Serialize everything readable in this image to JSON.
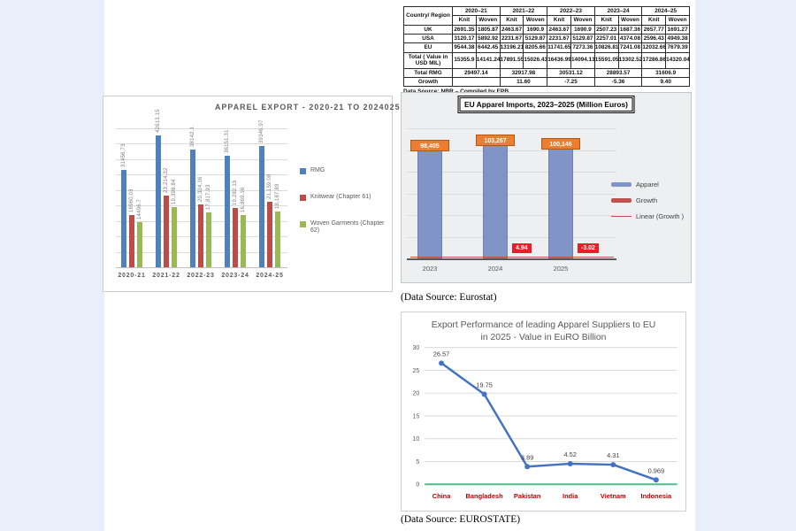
{
  "page": {
    "bg": "#e9eefb",
    "content_bg": "#ffffff"
  },
  "table": {
    "corner_label": "Country/ Region",
    "year_headers": [
      "2020–21",
      "2021–22",
      "2022–23",
      "2023–24",
      "2024–25"
    ],
    "sub_headers": [
      "Knit",
      "Woven"
    ],
    "rows": [
      {
        "label": "UK",
        "values": [
          "2691.35",
          "1805.87",
          "2463.67",
          "1690.9",
          "2463.67",
          "1690.9",
          "2507.23",
          "1687.36",
          "2657.77",
          "1691.27"
        ]
      },
      {
        "label": "USA",
        "values": [
          "3120.17",
          "5892.92",
          "2231.67",
          "5129.87",
          "2231.67",
          "5129.87",
          "2257.01",
          "4374.08",
          "2596.43",
          "4949.38"
        ]
      },
      {
        "label": "EU",
        "values": [
          "9544.38",
          "6442.45",
          "13196.21",
          "8205.66",
          "11741.65",
          "7273.36",
          "10826.81",
          "7241.08",
          "12032.66",
          "7679.39"
        ]
      },
      {
        "label": "Total ( Value in USD MIL)",
        "values": [
          "15355.9",
          "14141.24",
          "17891.55",
          "15026.43",
          "16436.99",
          "14094.13",
          "15591.05",
          "13302.52",
          "17286.86",
          "14320.04"
        ]
      }
    ],
    "merged_rows": [
      {
        "label": "Total RMG",
        "values": [
          "29497.14",
          "32917.98",
          "30531.12",
          "28893.57",
          "31606.9"
        ]
      },
      {
        "label": "Growth",
        "values": [
          "",
          "11.60",
          "-7.25",
          "-5.36",
          "9.40"
        ]
      }
    ],
    "source_note": "Data Source: NBR – Compiled by EPB"
  },
  "chart_data": [
    {
      "id": "apparel_export",
      "type": "bar",
      "title": "APPAREL EXPORT - 2020-21 TO 2024025",
      "categories": [
        "2020-21",
        "2021-22",
        "2022-23",
        "2023-24",
        "2024-25"
      ],
      "series": [
        {
          "name": "RMG",
          "color": "#4f81bd",
          "values": [
            31456.73,
            42613.15,
            38142.1,
            36151.31,
            39346.97
          ],
          "labels": [
            "31456.73",
            "42613.15",
            "38142.1",
            "36151.31",
            "39346.97"
          ]
        },
        {
          "name": "Knitwear (Chapter 61)",
          "color": "#be4b48",
          "values": [
            16960.03,
            23214.32,
            20324.16,
            19282.15,
            21159.08
          ],
          "labels": [
            "16960.03",
            "23,214.32",
            "20,324.16",
            "19,282.15",
            "21,159.08"
          ]
        },
        {
          "name": "Woven Garments (Chapter 62)",
          "color": "#98b954",
          "values": [
            14496.7,
            19398.84,
            17817.93,
            16869.16,
            18187.89
          ],
          "labels": [
            "14496.7",
            "19,398.84",
            "17,817.93",
            "16,869.16",
            "18,187.89"
          ]
        }
      ],
      "ylim": [
        0,
        45000
      ],
      "grid_step": 5000,
      "legend_position": "right",
      "grid": true
    },
    {
      "id": "eu_imports",
      "type": "bar",
      "title": "EU Apparel Imports, 2023–2025 (Million Euros)",
      "categories": [
        "2023",
        "2024",
        "2025"
      ],
      "values": [
        98405,
        103267,
        100146
      ],
      "bar_labels": [
        "98,405",
        "103,267",
        "100,146"
      ],
      "growth_values": [
        null,
        4.94,
        -3.02
      ],
      "growth_labels": [
        null,
        "4.94",
        "-3.02"
      ],
      "legend": [
        {
          "label": "Apparel",
          "swatch": "bar",
          "color": "#8094c8"
        },
        {
          "label": "Growth",
          "swatch": "bar",
          "color": "#c0504d"
        },
        {
          "label": "Linear (Growth )",
          "swatch": "line",
          "color": "#c0504d"
        }
      ],
      "colors": {
        "bar": "#8094c8",
        "bar_label_bg": "#ed7d31",
        "growth_bg": "#e32227",
        "linear_line": "#c0504d",
        "axis": "#595959"
      },
      "ylim": [
        0,
        110000
      ],
      "grid": true,
      "source_note": "(Data Source: Eurostat)"
    },
    {
      "id": "eu_suppliers",
      "type": "line",
      "title_line1": "Export Performance of leading Apparel Suppliers to EU",
      "title_line2": "in 2025 - Value in EuRO Billion",
      "categories": [
        "China",
        "Bangladesh",
        "Pakistan",
        "India",
        "Vietnam",
        "Indonesia"
      ],
      "values": [
        26.57,
        19.75,
        3.89,
        4.52,
        4.31,
        0.969
      ],
      "labels": [
        "26.57",
        "19.75",
        "3.89",
        "4.52",
        "4.31",
        "0.969"
      ],
      "yticks": [
        0,
        5,
        10,
        15,
        20,
        25,
        30
      ],
      "ylim": [
        0,
        30
      ],
      "grid": true,
      "colors": {
        "line": "#4472c4",
        "marker": "#4472c4",
        "baseline": "#4dbe8e",
        "category_label": "#c00000",
        "tick_label": "#595959"
      },
      "source_note": "(Data Source: EUROSTATE)"
    }
  ]
}
